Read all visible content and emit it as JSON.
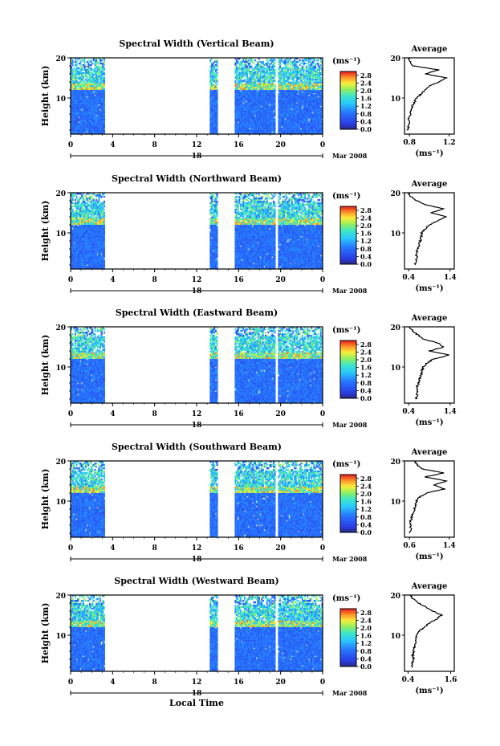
{
  "figure": {
    "x_axis_label": "Local Time",
    "date_label": "Mar 2008",
    "day_label": "18",
    "colorbar_unit": "(ms⁻¹)",
    "average_title": "Average",
    "average_unit": "(ms⁻¹)",
    "y_axis_label": "Height (km)"
  },
  "chart_data": [
    {
      "type": "heatmap",
      "title": "Spectral Width (Vertical Beam)",
      "ylabel": "Height (km)",
      "xlabel": "",
      "x_ticks": [
        "0",
        "4",
        "8",
        "12",
        "16",
        "20",
        "0"
      ],
      "xlim": [
        0,
        24
      ],
      "y_ticks": [
        "20",
        "10"
      ],
      "ylim": [
        1,
        20
      ],
      "data_gaps_hours": [
        [
          3.2,
          13.2
        ],
        [
          14.0,
          15.6
        ],
        [
          19.4,
          19.7
        ]
      ],
      "colorbar": {
        "ticks": [
          "2.8",
          "2.4",
          "2.0",
          "1.6",
          "1.2",
          "0.8",
          "0.4",
          "0.0"
        ],
        "range": [
          0,
          3.0
        ]
      },
      "average_profile": {
        "title": "Average",
        "xlabel": "(ms⁻¹)",
        "x_ticks": [
          "0.8",
          "1.2"
        ],
        "xlim": [
          0.75,
          1.25
        ],
        "y_ticks": [
          "20",
          "10"
        ],
        "height_km": [
          2,
          3,
          4,
          5,
          6,
          7,
          8,
          9,
          10,
          11,
          12,
          13,
          14,
          15,
          16,
          17,
          18,
          19,
          20
        ],
        "width_ms": [
          0.78,
          0.79,
          0.8,
          0.79,
          0.81,
          0.82,
          0.83,
          0.85,
          0.87,
          0.92,
          0.95,
          1.0,
          1.1,
          1.17,
          0.96,
          1.1,
          0.83,
          0.81,
          0.79
        ]
      }
    },
    {
      "type": "heatmap",
      "title": "Spectral Width (Northward Beam)",
      "ylabel": "Height (km)",
      "xlabel": "",
      "x_ticks": [
        "0",
        "4",
        "8",
        "12",
        "16",
        "20",
        "0"
      ],
      "xlim": [
        0,
        24
      ],
      "y_ticks": [
        "20",
        "10"
      ],
      "ylim": [
        1,
        20
      ],
      "data_gaps_hours": [
        [
          3.2,
          13.2
        ],
        [
          14.0,
          15.6
        ],
        [
          19.4,
          19.7
        ]
      ],
      "colorbar": {
        "ticks": [
          "2.8",
          "2.4",
          "2.0",
          "1.6",
          "1.2",
          "0.8",
          "0.4",
          "0.0"
        ],
        "range": [
          0,
          3.0
        ]
      },
      "average_profile": {
        "title": "Average",
        "xlabel": "(ms⁻¹)",
        "x_ticks": [
          "0.4",
          "1.4"
        ],
        "xlim": [
          0.3,
          1.5
        ],
        "y_ticks": [
          "20",
          "10"
        ],
        "height_km": [
          2,
          3,
          4,
          5,
          6,
          7,
          8,
          9,
          10,
          11,
          12,
          13,
          14,
          15,
          16,
          17,
          18,
          19,
          20
        ],
        "width_ms": [
          0.55,
          0.57,
          0.6,
          0.58,
          0.62,
          0.65,
          0.68,
          0.7,
          0.72,
          0.8,
          0.9,
          1.1,
          1.3,
          0.95,
          1.25,
          0.8,
          0.6,
          0.45,
          0.4
        ]
      }
    },
    {
      "type": "heatmap",
      "title": "Spectral Width (Eastward Beam)",
      "ylabel": "Height (km)",
      "xlabel": "",
      "x_ticks": [
        "0",
        "4",
        "8",
        "12",
        "16",
        "20",
        "0"
      ],
      "xlim": [
        0,
        24
      ],
      "y_ticks": [
        "20",
        "10"
      ],
      "ylim": [
        1,
        20
      ],
      "data_gaps_hours": [
        [
          3.2,
          13.2
        ],
        [
          14.0,
          15.6
        ],
        [
          19.4,
          19.7
        ]
      ],
      "colorbar": {
        "ticks": [
          "2.8",
          "2.4",
          "2.0",
          "1.6",
          "1.2",
          "0.8",
          "0.4",
          "0.0"
        ],
        "range": [
          0,
          3.0
        ]
      },
      "average_profile": {
        "title": "Average",
        "xlabel": "(ms⁻¹)",
        "x_ticks": [
          "0.4",
          "1.4"
        ],
        "xlim": [
          0.3,
          1.5
        ],
        "y_ticks": [
          "20",
          "10"
        ],
        "height_km": [
          2,
          3,
          4,
          5,
          6,
          7,
          8,
          9,
          10,
          11,
          12,
          13,
          14,
          15,
          16,
          17,
          18,
          19,
          20
        ],
        "width_ms": [
          0.58,
          0.6,
          0.62,
          0.6,
          0.64,
          0.66,
          0.7,
          0.72,
          0.75,
          0.85,
          1.0,
          1.4,
          0.9,
          1.25,
          1.1,
          0.75,
          0.62,
          0.5,
          0.42
        ]
      }
    },
    {
      "type": "heatmap",
      "title": "Spectral Width (Southward Beam)",
      "ylabel": "Height (km)",
      "xlabel": "",
      "x_ticks": [
        "0",
        "4",
        "8",
        "12",
        "16",
        "20",
        "0"
      ],
      "xlim": [
        0,
        24
      ],
      "y_ticks": [
        "20",
        "10"
      ],
      "ylim": [
        1,
        20
      ],
      "data_gaps_hours": [
        [
          3.2,
          13.2
        ],
        [
          14.0,
          15.6
        ],
        [
          19.4,
          19.7
        ]
      ],
      "colorbar": {
        "ticks": [
          "2.8",
          "2.4",
          "2.0",
          "1.6",
          "1.2",
          "0.8",
          "0.4",
          "0.0"
        ],
        "range": [
          0,
          3.0
        ]
      },
      "average_profile": {
        "title": "Average",
        "xlabel": "(ms⁻¹)",
        "x_ticks": [
          "0.6",
          "1.4"
        ],
        "xlim": [
          0.5,
          1.5
        ],
        "y_ticks": [
          "20",
          "10"
        ],
        "height_km": [
          2,
          3,
          4,
          5,
          6,
          7,
          8,
          9,
          10,
          11,
          12,
          13,
          14,
          15,
          16,
          17,
          18,
          19,
          20
        ],
        "width_ms": [
          0.6,
          0.62,
          0.63,
          0.62,
          0.65,
          0.67,
          0.7,
          0.72,
          0.74,
          0.8,
          0.95,
          1.3,
          1.1,
          1.35,
          0.9,
          1.3,
          0.85,
          0.75,
          0.7
        ]
      }
    },
    {
      "type": "heatmap",
      "title": "Spectral Width (Westward Beam)",
      "ylabel": "Height (km)",
      "xlabel": "Local Time",
      "x_ticks": [
        "0",
        "4",
        "8",
        "12",
        "16",
        "20",
        "0"
      ],
      "xlim": [
        0,
        24
      ],
      "y_ticks": [
        "20",
        "10"
      ],
      "ylim": [
        1,
        20
      ],
      "data_gaps_hours": [
        [
          3.2,
          13.2
        ],
        [
          14.0,
          15.6
        ],
        [
          19.4,
          19.7
        ]
      ],
      "colorbar": {
        "ticks": [
          "2.8",
          "2.4",
          "2.0",
          "1.6",
          "1.2",
          "0.8",
          "0.4",
          "0.0"
        ],
        "range": [
          0,
          3.0
        ]
      },
      "average_profile": {
        "title": "Average",
        "xlabel": "(ms⁻¹)",
        "x_ticks": [
          "0.4",
          "1.6"
        ],
        "xlim": [
          0.3,
          1.7
        ],
        "y_ticks": [
          "20",
          "10"
        ],
        "height_km": [
          2,
          3,
          4,
          5,
          6,
          7,
          8,
          9,
          10,
          11,
          12,
          13,
          14,
          15,
          16,
          17,
          18,
          19,
          20
        ],
        "width_ms": [
          0.5,
          0.52,
          0.55,
          0.53,
          0.56,
          0.58,
          0.6,
          0.62,
          0.65,
          0.72,
          0.85,
          1.0,
          1.2,
          1.35,
          1.1,
          0.9,
          0.7,
          0.55,
          0.45
        ]
      }
    }
  ]
}
